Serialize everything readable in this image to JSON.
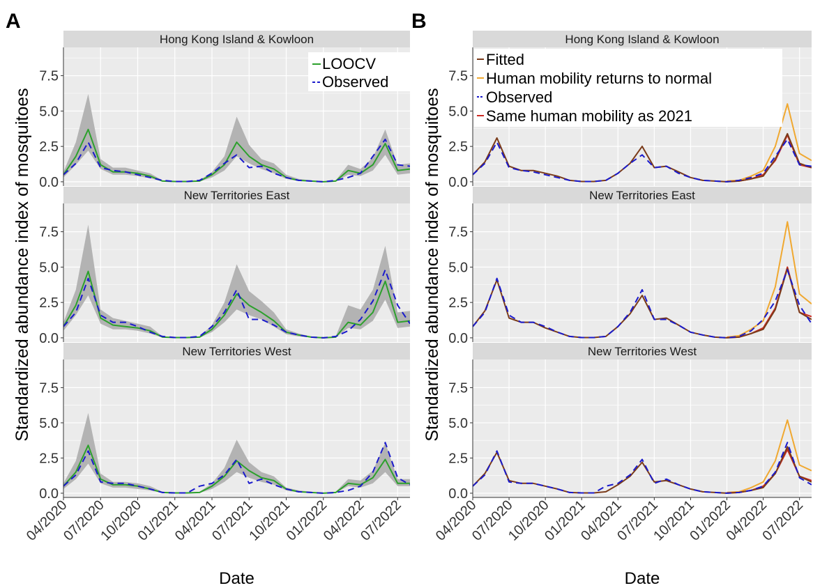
{
  "figure": {
    "panels": [
      "A",
      "B"
    ],
    "xlabel": "Date",
    "ylabel": "Standardized abundance index of mosquitoes",
    "y_ticks": [
      "0.0",
      "2.5",
      "5.0",
      "7.5"
    ],
    "x_ticks": [
      "04/2020",
      "07/2020",
      "10/2020",
      "01/2021",
      "04/2021",
      "07/2021",
      "10/2021",
      "01/2022",
      "04/2022",
      "07/2022"
    ],
    "facets": [
      "Hong Kong Island & Kowloon",
      "New Territories East",
      "New Territories West"
    ]
  },
  "colors": {
    "loocv": "#2ca02c",
    "observed": "#1a1acc",
    "fitted": "#7a3b1a",
    "normal": "#f0a830",
    "same2021": "#cc2a22",
    "band": "#b3b3b3",
    "panel_bg": "#ebebeb",
    "strip_bg": "#d9d9d9",
    "grid": "#ffffff"
  },
  "chart_data": [
    {
      "type": "line",
      "panel": "A",
      "xlabel": "Date",
      "ylabel": "Standardized abundance index of mosquitoes",
      "ylim": [
        -0.3,
        9.5
      ],
      "x_range": [
        "2020-04",
        "2022-08"
      ],
      "x": [
        "2020-04",
        "2020-05",
        "2020-06",
        "2020-07",
        "2020-08",
        "2020-09",
        "2020-10",
        "2020-11",
        "2020-12",
        "2021-01",
        "2021-02",
        "2021-03",
        "2021-04",
        "2021-05",
        "2021-06",
        "2021-07",
        "2021-08",
        "2021-09",
        "2021-10",
        "2021-11",
        "2021-12",
        "2022-01",
        "2022-02",
        "2022-03",
        "2022-04",
        "2022-05",
        "2022-06",
        "2022-07",
        "2022-08"
      ],
      "legend": [
        "LOOCV",
        "Observed"
      ],
      "legend_position": "top-right",
      "grid": true,
      "facets": [
        {
          "title": "Hong Kong Island & Kowloon",
          "series": [
            {
              "name": "LOOCV",
              "values": [
                0.5,
                1.8,
                3.7,
                1.2,
                0.7,
                0.7,
                0.6,
                0.4,
                0.05,
                0.02,
                0.02,
                0.05,
                0.5,
                1.2,
                2.8,
                1.8,
                1.2,
                0.9,
                0.3,
                0.1,
                0.05,
                0.0,
                0.05,
                0.8,
                0.6,
                1.2,
                2.7,
                0.8,
                0.9
              ]
            },
            {
              "name": "Observed",
              "values": [
                0.5,
                1.3,
                2.8,
                1.0,
                0.8,
                0.7,
                0.5,
                0.3,
                0.1,
                0.02,
                0.02,
                0.1,
                0.6,
                1.3,
                1.9,
                1.0,
                1.1,
                0.6,
                0.3,
                0.1,
                0.05,
                0.0,
                0.1,
                0.3,
                0.6,
                1.8,
                3.0,
                1.2,
                1.1
              ]
            },
            {
              "name": "LOOCV interval",
              "lower": [
                0.3,
                1.2,
                2.2,
                0.9,
                0.5,
                0.5,
                0.4,
                0.25,
                0.02,
                0.0,
                0.0,
                0.02,
                0.3,
                0.8,
                1.8,
                1.3,
                0.9,
                0.6,
                0.2,
                0.05,
                0.02,
                0.0,
                0.02,
                0.5,
                0.4,
                0.8,
                1.9,
                0.5,
                0.6
              ],
              "upper": [
                0.7,
                2.8,
                6.2,
                1.6,
                1.0,
                1.0,
                0.8,
                0.6,
                0.1,
                0.05,
                0.05,
                0.1,
                0.7,
                1.8,
                4.6,
                2.6,
                1.6,
                1.3,
                0.5,
                0.2,
                0.1,
                0.02,
                0.1,
                1.2,
                0.9,
                1.7,
                3.7,
                1.2,
                1.3
              ]
            }
          ]
        },
        {
          "title": "New Territories East",
          "series": [
            {
              "name": "LOOCV",
              "values": [
                0.8,
                2.3,
                4.7,
                1.4,
                0.9,
                0.8,
                0.7,
                0.5,
                0.05,
                0.02,
                0.02,
                0.05,
                0.6,
                1.6,
                3.1,
                2.3,
                1.8,
                1.2,
                0.4,
                0.2,
                0.05,
                0.0,
                0.05,
                1.1,
                0.9,
                1.8,
                4.0,
                1.1,
                1.2
              ]
            },
            {
              "name": "Observed",
              "values": [
                0.8,
                1.8,
                4.2,
                1.6,
                1.1,
                1.1,
                0.8,
                0.4,
                0.1,
                0.02,
                0.02,
                0.1,
                0.8,
                1.8,
                3.4,
                1.3,
                1.3,
                0.9,
                0.4,
                0.2,
                0.05,
                0.0,
                0.1,
                0.5,
                1.3,
                2.6,
                4.8,
                2.3,
                1.0
              ]
            },
            {
              "name": "LOOCV interval",
              "lower": [
                0.5,
                1.6,
                3.0,
                1.0,
                0.6,
                0.6,
                0.5,
                0.3,
                0.02,
                0.0,
                0.0,
                0.02,
                0.4,
                1.1,
                2.0,
                1.6,
                1.3,
                0.8,
                0.25,
                0.1,
                0.02,
                0.0,
                0.02,
                0.7,
                0.6,
                1.2,
                2.7,
                0.7,
                0.8
              ],
              "upper": [
                1.1,
                3.4,
                8.0,
                2.0,
                1.4,
                1.2,
                1.0,
                0.8,
                0.1,
                0.05,
                0.05,
                0.1,
                0.9,
                2.5,
                5.2,
                3.3,
                2.6,
                1.8,
                0.6,
                0.3,
                0.1,
                0.02,
                0.1,
                2.3,
                2.0,
                3.4,
                6.5,
                1.8,
                1.9
              ]
            }
          ]
        },
        {
          "title": "New Territories West",
          "series": [
            {
              "name": "LOOCV",
              "values": [
                0.5,
                1.5,
                3.4,
                1.0,
                0.6,
                0.6,
                0.5,
                0.3,
                0.05,
                0.02,
                0.02,
                0.05,
                0.5,
                1.2,
                2.3,
                1.6,
                1.1,
                0.9,
                0.3,
                0.1,
                0.05,
                0.0,
                0.05,
                0.7,
                0.6,
                1.1,
                2.4,
                0.7,
                0.7
              ]
            },
            {
              "name": "Observed",
              "values": [
                0.5,
                1.3,
                3.0,
                0.8,
                0.7,
                0.7,
                0.5,
                0.3,
                0.05,
                0.02,
                0.02,
                0.5,
                0.7,
                1.3,
                2.4,
                0.7,
                1.0,
                0.6,
                0.3,
                0.1,
                0.05,
                0.0,
                0.05,
                0.2,
                0.5,
                1.5,
                3.6,
                1.1,
                0.6
              ]
            },
            {
              "name": "LOOCV interval",
              "lower": [
                0.3,
                1.0,
                2.1,
                0.7,
                0.4,
                0.4,
                0.3,
                0.2,
                0.02,
                0.0,
                0.0,
                0.02,
                0.3,
                0.8,
                1.5,
                1.1,
                0.8,
                0.6,
                0.2,
                0.05,
                0.02,
                0.0,
                0.02,
                0.5,
                0.4,
                0.7,
                1.5,
                0.5,
                0.5
              ],
              "upper": [
                0.7,
                2.3,
                5.7,
                1.4,
                0.8,
                0.8,
                0.7,
                0.5,
                0.1,
                0.05,
                0.05,
                0.1,
                0.7,
                1.8,
                3.8,
                2.2,
                1.5,
                1.2,
                0.4,
                0.2,
                0.1,
                0.02,
                0.1,
                1.0,
                0.9,
                1.6,
                3.6,
                1.0,
                1.0
              ]
            }
          ]
        }
      ]
    },
    {
      "type": "line",
      "panel": "B",
      "xlabel": "Date",
      "ylabel": "Standardized abundance index of mosquitoes",
      "ylim": [
        -0.3,
        9.5
      ],
      "x_range": [
        "2020-04",
        "2022-08"
      ],
      "x": [
        "2020-04",
        "2020-05",
        "2020-06",
        "2020-07",
        "2020-08",
        "2020-09",
        "2020-10",
        "2020-11",
        "2020-12",
        "2021-01",
        "2021-02",
        "2021-03",
        "2021-04",
        "2021-05",
        "2021-06",
        "2021-07",
        "2021-08",
        "2021-09",
        "2021-10",
        "2021-11",
        "2021-12",
        "2022-01",
        "2022-02",
        "2022-03",
        "2022-04",
        "2022-05",
        "2022-06",
        "2022-07",
        "2022-08"
      ],
      "legend": [
        "Fitted",
        "Human mobility returns to normal",
        "Observed",
        "Same human mobility as 2021"
      ],
      "legend_position": "top-left",
      "grid": true,
      "facets": [
        {
          "title": "Hong Kong Island & Kowloon",
          "series": [
            {
              "name": "Human mobility returns to normal",
              "x": [
                "2022-01",
                "2022-02",
                "2022-03",
                "2022-04",
                "2022-05",
                "2022-06",
                "2022-07",
                "2022-08"
              ],
              "values": [
                0.05,
                0.1,
                0.4,
                0.8,
                2.5,
                5.5,
                2.0,
                1.5
              ]
            },
            {
              "name": "Same human mobility as 2021",
              "x": [
                "2022-01",
                "2022-02",
                "2022-03",
                "2022-04",
                "2022-05",
                "2022-06",
                "2022-07",
                "2022-08"
              ],
              "values": [
                0.02,
                0.05,
                0.2,
                0.5,
                1.5,
                3.3,
                1.2,
                1.0
              ]
            },
            {
              "name": "Fitted",
              "values": [
                0.5,
                1.4,
                3.1,
                1.1,
                0.8,
                0.8,
                0.6,
                0.4,
                0.1,
                0.02,
                0.02,
                0.1,
                0.6,
                1.3,
                2.5,
                1.0,
                1.1,
                0.7,
                0.3,
                0.1,
                0.05,
                0.0,
                0.05,
                0.2,
                0.4,
                1.6,
                3.4,
                1.3,
                1.0
              ]
            },
            {
              "name": "Observed",
              "values": [
                0.5,
                1.3,
                2.8,
                1.0,
                0.8,
                0.7,
                0.5,
                0.3,
                0.1,
                0.02,
                0.02,
                0.1,
                0.6,
                1.3,
                1.9,
                1.0,
                1.1,
                0.6,
                0.3,
                0.1,
                0.05,
                0.0,
                0.1,
                0.3,
                0.6,
                1.8,
                3.0,
                1.2,
                1.1
              ]
            }
          ]
        },
        {
          "title": "New Territories East",
          "series": [
            {
              "name": "Human mobility returns to normal",
              "x": [
                "2022-01",
                "2022-02",
                "2022-03",
                "2022-04",
                "2022-05",
                "2022-06",
                "2022-07",
                "2022-08"
              ],
              "values": [
                0.05,
                0.15,
                0.6,
                1.2,
                3.6,
                8.2,
                3.1,
                2.4
              ]
            },
            {
              "name": "Same human mobility as 2021",
              "x": [
                "2022-01",
                "2022-02",
                "2022-03",
                "2022-04",
                "2022-05",
                "2022-06",
                "2022-07",
                "2022-08"
              ],
              "values": [
                0.02,
                0.05,
                0.3,
                0.7,
                2.1,
                5.0,
                1.8,
                1.5
              ]
            },
            {
              "name": "Fitted",
              "values": [
                0.8,
                1.9,
                4.1,
                1.4,
                1.1,
                1.1,
                0.7,
                0.4,
                0.1,
                0.02,
                0.02,
                0.1,
                0.8,
                1.7,
                3.0,
                1.3,
                1.4,
                0.9,
                0.4,
                0.2,
                0.05,
                0.0,
                0.05,
                0.3,
                0.6,
                2.0,
                4.9,
                1.8,
                1.3
              ]
            },
            {
              "name": "Observed",
              "values": [
                0.8,
                1.8,
                4.2,
                1.6,
                1.1,
                1.1,
                0.8,
                0.4,
                0.1,
                0.02,
                0.02,
                0.1,
                0.8,
                1.8,
                3.4,
                1.3,
                1.3,
                0.9,
                0.4,
                0.2,
                0.05,
                0.0,
                0.1,
                0.5,
                1.3,
                2.6,
                4.8,
                2.3,
                1.0
              ]
            }
          ]
        },
        {
          "title": "New Territories West",
          "series": [
            {
              "name": "Human mobility returns to normal",
              "x": [
                "2022-01",
                "2022-02",
                "2022-03",
                "2022-04",
                "2022-05",
                "2022-06",
                "2022-07",
                "2022-08"
              ],
              "values": [
                0.05,
                0.1,
                0.4,
                0.8,
                2.3,
                5.2,
                2.0,
                1.6
              ]
            },
            {
              "name": "Same human mobility as 2021",
              "x": [
                "2022-01",
                "2022-02",
                "2022-03",
                "2022-04",
                "2022-05",
                "2022-06",
                "2022-07",
                "2022-08"
              ],
              "values": [
                0.02,
                0.05,
                0.2,
                0.5,
                1.4,
                3.1,
                1.2,
                0.9
              ]
            },
            {
              "name": "Fitted",
              "values": [
                0.5,
                1.4,
                2.9,
                0.9,
                0.7,
                0.7,
                0.5,
                0.3,
                0.05,
                0.02,
                0.02,
                0.1,
                0.6,
                1.2,
                2.2,
                0.8,
                0.9,
                0.6,
                0.3,
                0.1,
                0.05,
                0.0,
                0.05,
                0.2,
                0.4,
                1.4,
                3.3,
                1.2,
                0.8
              ]
            },
            {
              "name": "Observed",
              "values": [
                0.5,
                1.3,
                3.0,
                0.8,
                0.7,
                0.7,
                0.5,
                0.3,
                0.05,
                0.02,
                0.02,
                0.5,
                0.7,
                1.3,
                2.4,
                0.7,
                1.0,
                0.6,
                0.3,
                0.1,
                0.05,
                0.0,
                0.05,
                0.2,
                0.5,
                1.5,
                3.6,
                1.1,
                0.6
              ]
            }
          ]
        }
      ]
    }
  ]
}
